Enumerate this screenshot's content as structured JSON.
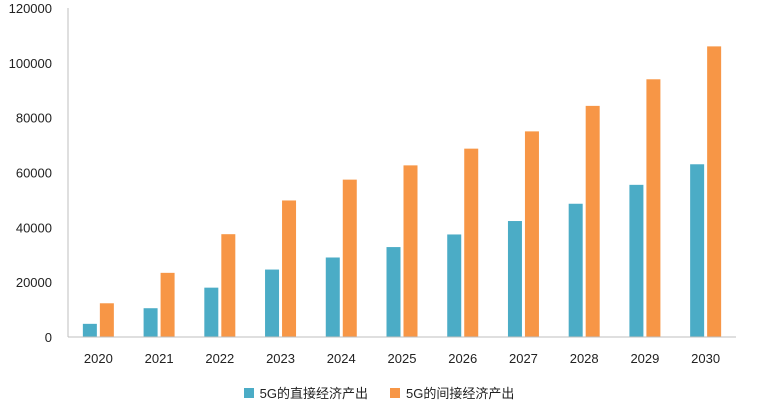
{
  "chart_data": {
    "type": "bar",
    "categories": [
      "2020",
      "2021",
      "2022",
      "2023",
      "2024",
      "2025",
      "2026",
      "2027",
      "2028",
      "2029",
      "2030"
    ],
    "series": [
      {
        "name": "5G的直接经济产出",
        "color": "#4bacc6",
        "values": [
          4800,
          10500,
          18000,
          24600,
          29000,
          32800,
          37400,
          42300,
          48600,
          55500,
          63000
        ]
      },
      {
        "name": "5G的间接经济产出",
        "color": "#f79646",
        "values": [
          12300,
          23400,
          37500,
          49800,
          57400,
          62600,
          68700,
          75000,
          84300,
          94000,
          106000
        ]
      }
    ],
    "yticks": [
      "0",
      "20000",
      "40000",
      "60000",
      "80000",
      "100000",
      "120000"
    ],
    "ylim": [
      0,
      120000
    ],
    "grid": false,
    "legend_position": "bottom-center",
    "title": "",
    "xlabel": "",
    "ylabel": ""
  }
}
